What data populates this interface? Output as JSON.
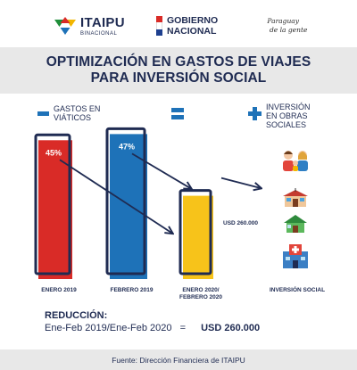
{
  "header": {
    "itaipu_logo": {
      "name": "ITAIPU",
      "sub": "BINACIONAL"
    },
    "gobierno_logo": {
      "line1": "GOBIERNO",
      "line2": "NACIONAL"
    },
    "paraguay_logo": {
      "line1": "Paraguay",
      "line2": "de la gente"
    }
  },
  "title": {
    "line1": "OPTIMIZACIÓN EN GASTOS DE VIAJES",
    "line2": "PARA INVERSIÓN SOCIAL"
  },
  "equation": {
    "minus_label": [
      "GASTOS EN",
      "VIÁTICOS"
    ],
    "plus_label": [
      "INVERSIÓN",
      "EN OBRAS",
      "SOCIALES"
    ]
  },
  "chart_data": {
    "type": "bar",
    "categories": [
      "ENERO 2019",
      "FEBRERO 2019",
      "ENERO 2020/ FEBRERO 2020"
    ],
    "category_lines": [
      [
        "ENERO 2019"
      ],
      [
        "FEBRERO 2019"
      ],
      [
        "ENERO 2020/",
        "FEBRERO 2020"
      ]
    ],
    "values": [
      45,
      47,
      27
    ],
    "data_labels": [
      "45%",
      "47%",
      ""
    ],
    "colors": [
      "#d92b27",
      "#1e72b8",
      "#f7c31a"
    ],
    "saving_label": "USD 260.000",
    "ylim": [
      0,
      50
    ]
  },
  "social": {
    "label": "INVERSIÓN SOCIAL",
    "icons": [
      "family-icon",
      "school-icon",
      "house-icon",
      "hospital-icon"
    ]
  },
  "reduction": {
    "title": "REDUCCIÓN:",
    "period": "Ene-Feb 2019/Ene-Feb 2020",
    "equals": "=",
    "amount": "USD 260.000"
  },
  "footer": {
    "source": "Fuente: Dirección Financiera de ITAIPU"
  }
}
